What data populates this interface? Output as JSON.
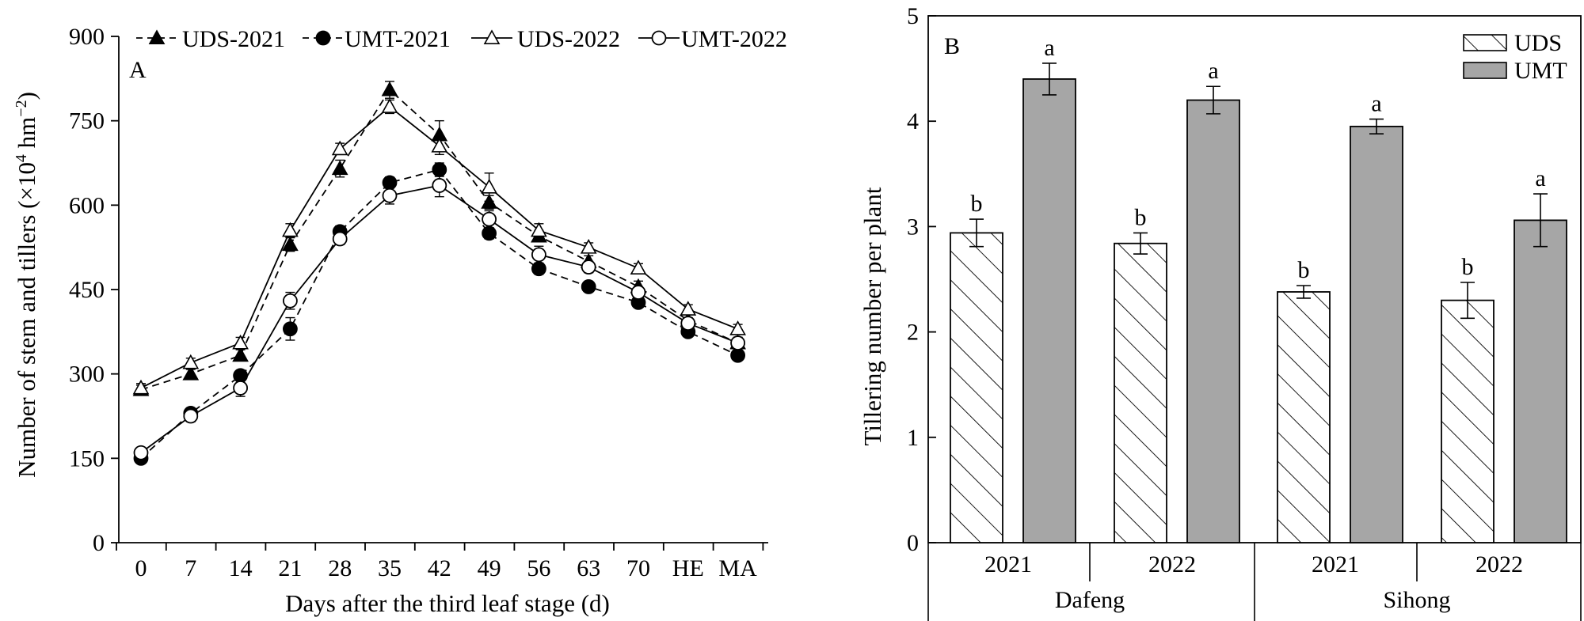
{
  "chart_data": [
    {
      "id": "A",
      "type": "line",
      "panel_label": "A",
      "xlabel": "Days after the third leaf stage (d)",
      "ylabel_main": "Number of stem and tillers (×10",
      "ylabel_sup1": "4",
      "ylabel_mid": " hm",
      "ylabel_sup2": "−2",
      "ylabel_end": ")",
      "categories": [
        "0",
        "7",
        "14",
        "21",
        "28",
        "35",
        "42",
        "49",
        "56",
        "63",
        "70",
        "HE",
        "MA"
      ],
      "ylim": [
        0,
        900
      ],
      "yticks": [
        0,
        150,
        300,
        450,
        600,
        750,
        900
      ],
      "grid": false,
      "legend_position": "top",
      "series": [
        {
          "name": "UDS-2021",
          "marker": "triangle-filled",
          "dash": "dashed",
          "values": [
            272,
            300,
            333,
            530,
            665,
            805,
            725,
            605,
            545,
            500,
            455,
            395,
            355
          ],
          "errors": [
            8,
            8,
            10,
            12,
            15,
            15,
            25,
            12,
            10,
            10,
            10,
            10,
            10
          ]
        },
        {
          "name": "UMT-2021",
          "marker": "circle-filled",
          "dash": "dashed",
          "values": [
            150,
            230,
            297,
            380,
            553,
            640,
            663,
            550,
            487,
            455,
            427,
            375,
            333
          ],
          "errors": [
            6,
            8,
            8,
            20,
            10,
            10,
            12,
            10,
            10,
            6,
            8,
            8,
            8
          ]
        },
        {
          "name": "UDS-2022",
          "marker": "triangle-open",
          "dash": "solid",
          "values": [
            275,
            320,
            355,
            555,
            700,
            775,
            705,
            632,
            555,
            525,
            488,
            415,
            380
          ],
          "errors": [
            8,
            8,
            10,
            12,
            10,
            12,
            15,
            25,
            12,
            8,
            8,
            8,
            8
          ]
        },
        {
          "name": "UMT-2022",
          "marker": "circle-open",
          "dash": "solid",
          "values": [
            160,
            225,
            275,
            430,
            540,
            617,
            635,
            575,
            512,
            490,
            445,
            390,
            355
          ],
          "errors": [
            8,
            10,
            15,
            15,
            10,
            15,
            20,
            15,
            15,
            10,
            10,
            10,
            10
          ]
        }
      ]
    },
    {
      "id": "B",
      "type": "bar",
      "panel_label": "B",
      "ylabel": "Tillering number per plant",
      "ylim": [
        0,
        5
      ],
      "yticks": [
        0,
        1,
        2,
        3,
        4,
        5
      ],
      "grid": false,
      "legend_position": "top-right",
      "groups": [
        {
          "site": "Dafeng",
          "years": [
            {
              "year": "2021",
              "UDS": 2.94,
              "UDS_err": 0.13,
              "UDS_sig": "b",
              "UMT": 4.4,
              "UMT_err": 0.15,
              "UMT_sig": "a"
            },
            {
              "year": "2022",
              "UDS": 2.84,
              "UDS_err": 0.1,
              "UDS_sig": "b",
              "UMT": 4.2,
              "UMT_err": 0.13,
              "UMT_sig": "a"
            }
          ]
        },
        {
          "site": "Sihong",
          "years": [
            {
              "year": "2021",
              "UDS": 2.38,
              "UDS_err": 0.06,
              "UDS_sig": "b",
              "UMT": 3.95,
              "UMT_err": 0.07,
              "UMT_sig": "a"
            },
            {
              "year": "2022",
              "UDS": 2.3,
              "UDS_err": 0.17,
              "UDS_sig": "b",
              "UMT": 3.06,
              "UMT_err": 0.25,
              "UMT_sig": "a"
            }
          ]
        }
      ],
      "series": [
        {
          "name": "UDS",
          "fill": "hatched",
          "color": "#ffffff"
        },
        {
          "name": "UMT",
          "fill": "solid",
          "color": "#a6a6a6"
        }
      ]
    }
  ]
}
